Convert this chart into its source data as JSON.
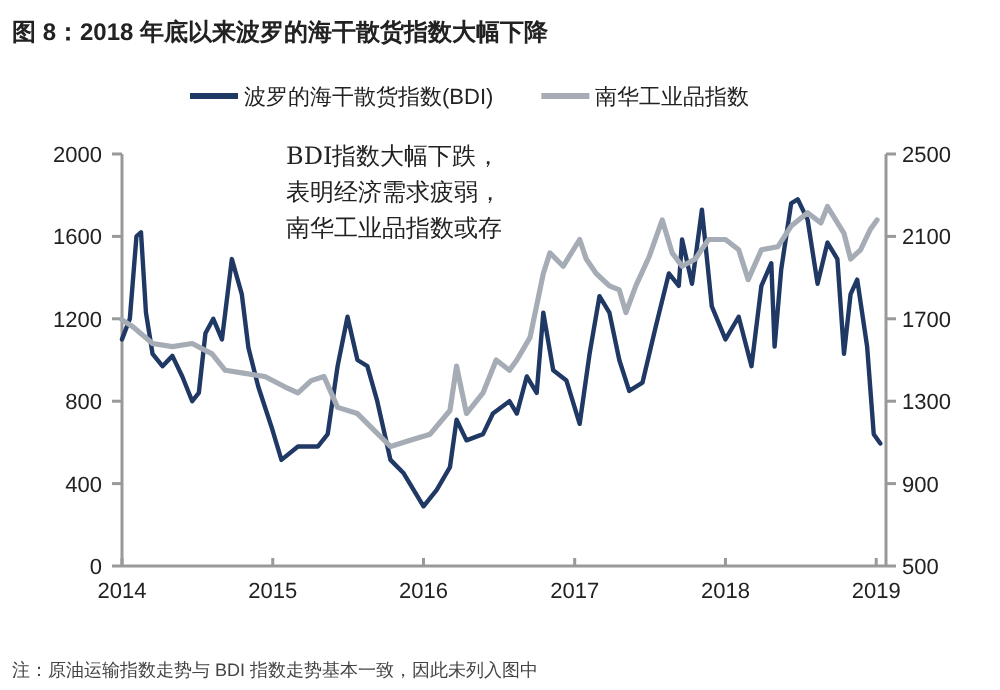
{
  "chart_data": {
    "type": "line",
    "title": "图 8：2018 年底以来波罗的海干散货指数大幅下降",
    "annotations": [
      "BDI指数大幅下跌，",
      "表明经济需求疲弱，",
      "南华工业品指数或存",
      "注：原油运输指数走势与 BDI 指数走势基本一致，因此未列入图中"
    ],
    "series": [
      {
        "name": "波罗的海干散货指数(BDI)",
        "color": "#1f3864",
        "x": [
          "2014-01-01",
          "2014-01-20",
          "2014-02-05",
          "2014-02-16",
          "2014-02-28",
          "2014-03-16",
          "2014-04-09",
          "2014-05-03",
          "2014-05-27",
          "2014-06-20",
          "2014-07-06",
          "2014-07-22",
          "2014-08-10",
          "2014-08-31",
          "2014-09-24",
          "2014-10-18",
          "2014-11-03",
          "2014-11-27",
          "2014-12-29",
          "2015-01-22",
          "2015-03-03",
          "2015-04-20",
          "2015-05-14",
          "2015-06-07",
          "2015-07-01",
          "2015-07-25",
          "2015-08-18",
          "2015-09-11",
          "2015-10-13",
          "2015-11-14",
          "2016-01-01",
          "2016-02-02",
          "2016-03-05",
          "2016-03-21",
          "2016-04-14",
          "2016-05-24",
          "2016-06-17",
          "2016-07-27",
          "2016-08-14",
          "2016-09-07",
          "2016-10-01",
          "2016-10-17",
          "2016-11-10",
          "2016-12-12",
          "2017-01-13",
          "2017-02-06",
          "2017-03-02",
          "2017-03-26",
          "2017-04-19",
          "2017-05-13",
          "2017-06-14",
          "2017-07-16",
          "2017-08-17",
          "2017-09-10",
          "2017-09-18",
          "2017-10-12",
          "2017-11-05",
          "2017-11-29",
          "2018-01-01",
          "2018-02-02",
          "2018-03-05",
          "2018-03-29",
          "2018-04-22",
          "2018-04-30",
          "2018-05-16",
          "2018-06-09",
          "2018-06-25",
          "2018-07-19",
          "2018-08-12",
          "2018-09-05",
          "2018-09-29",
          "2018-10-15",
          "2018-10-31",
          "2018-11-16",
          "2018-12-10",
          "2018-12-26",
          "2019-01-11"
        ],
        "values": [
          1100,
          1200,
          1600,
          1620,
          1230,
          1030,
          970,
          1020,
          920,
          800,
          840,
          1130,
          1200,
          1100,
          1490,
          1320,
          1060,
          870,
          675,
          515,
          580,
          580,
          640,
          970,
          1210,
          1000,
          970,
          800,
          515,
          450,
          290,
          370,
          480,
          710,
          610,
          640,
          740,
          800,
          740,
          920,
          840,
          1230,
          950,
          900,
          690,
          1030,
          1310,
          1230,
          1000,
          850,
          890,
          1160,
          1420,
          1360,
          1585,
          1370,
          1730,
          1260,
          1100,
          1210,
          970,
          1360,
          1470,
          1065,
          1440,
          1760,
          1780,
          1680,
          1370,
          1570,
          1490,
          1030,
          1320,
          1390,
          1065,
          640,
          595
        ]
      },
      {
        "name": "南华工业品指数",
        "color": "#a6acb5",
        "axis": "y2",
        "x": [
          "2014-01-01",
          "2014-01-28",
          "2014-03-16",
          "2014-05-03",
          "2014-06-20",
          "2014-08-07",
          "2014-09-08",
          "2014-10-26",
          "2014-12-13",
          "2015-01-30",
          "2015-03-03",
          "2015-04-04",
          "2015-05-05",
          "2015-06-07",
          "2015-07-25",
          "2015-08-26",
          "2015-10-13",
          "2015-11-30",
          "2016-01-17",
          "2016-03-05",
          "2016-03-21",
          "2016-04-14",
          "2016-05-24",
          "2016-06-25",
          "2016-07-27",
          "2016-08-14",
          "2016-09-15",
          "2016-10-17",
          "2016-11-02",
          "2016-12-04",
          "2017-01-13",
          "2017-01-29",
          "2017-02-22",
          "2017-03-26",
          "2017-04-19",
          "2017-05-05",
          "2017-05-29",
          "2017-06-30",
          "2017-08-01",
          "2017-08-25",
          "2017-09-18",
          "2017-10-20",
          "2017-11-21",
          "2018-01-01",
          "2018-02-02",
          "2018-02-25",
          "2018-03-29",
          "2018-05-08",
          "2018-06-09",
          "2018-07-19",
          "2018-08-20",
          "2018-09-05",
          "2018-10-15",
          "2018-10-31",
          "2018-11-24",
          "2018-12-18",
          "2019-01-03"
        ],
        "values": [
          1695,
          1660,
          1580,
          1565,
          1580,
          1530,
          1450,
          1435,
          1420,
          1370,
          1340,
          1400,
          1420,
          1270,
          1240,
          1175,
          1080,
          1110,
          1140,
          1255,
          1470,
          1240,
          1340,
          1500,
          1450,
          1500,
          1610,
          1920,
          2020,
          1955,
          2085,
          1990,
          1920,
          1860,
          1840,
          1730,
          1860,
          2000,
          2180,
          2020,
          1955,
          1990,
          2085,
          2085,
          2035,
          1890,
          2035,
          2050,
          2150,
          2215,
          2165,
          2245,
          2115,
          1990,
          2035,
          2135,
          2180
        ]
      }
    ],
    "xlim": [
      "2014-01-01",
      "2019-01-15"
    ],
    "xticks": [
      {
        "value": "2014-01-01",
        "label": "2014"
      },
      {
        "value": "2015-01-01",
        "label": "2015"
      },
      {
        "value": "2016-01-01",
        "label": "2016"
      },
      {
        "value": "2017-01-01",
        "label": "2017"
      },
      {
        "value": "2018-01-01",
        "label": "2018"
      },
      {
        "value": "2019-01-01",
        "label": "2019"
      }
    ],
    "ylim": [
      0,
      2000
    ],
    "yticks": [
      0,
      400,
      800,
      1200,
      1600,
      2000
    ],
    "y2lim": [
      500,
      2500
    ],
    "y2ticks": [
      500,
      900,
      1300,
      1700,
      2100,
      2500
    ],
    "legend": "top",
    "grid": false,
    "marker": "none",
    "line_style": "solid"
  }
}
